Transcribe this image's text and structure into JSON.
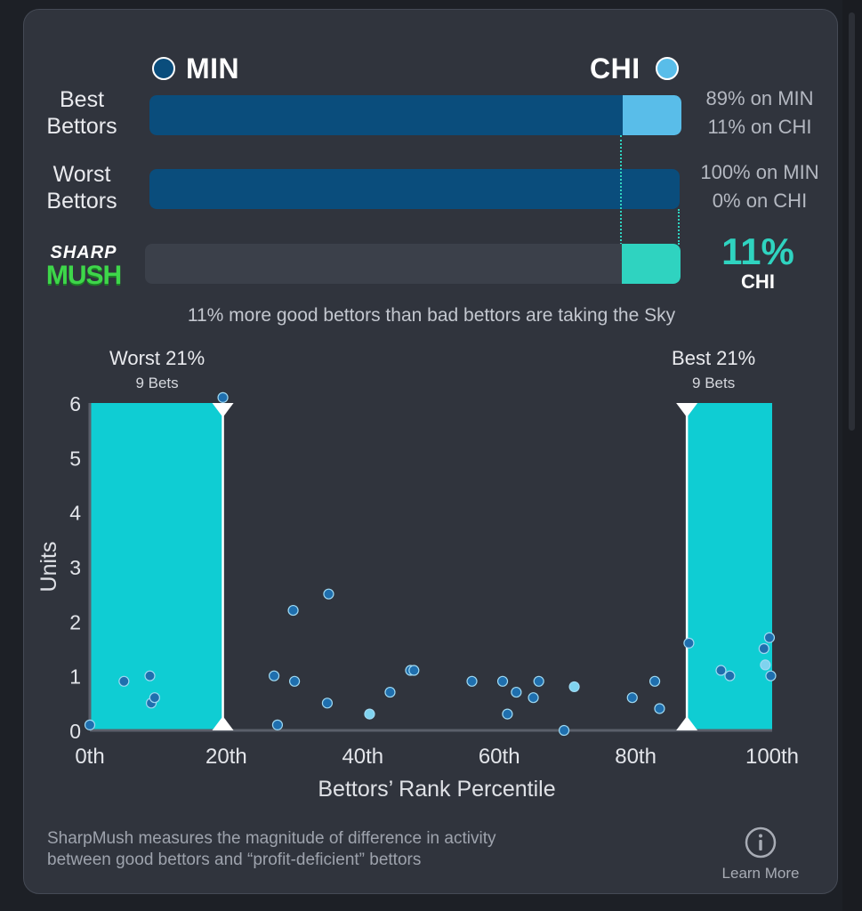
{
  "teams": {
    "left": {
      "label": "MIN",
      "color": "#0a4d7c"
    },
    "right": {
      "label": "CHI",
      "color": "#59bde9"
    }
  },
  "rows": [
    {
      "label_line1": "Best",
      "label_line2": "Bettors",
      "left_pct": 89,
      "right_pct": 11,
      "text_line1": "89% on MIN",
      "text_line2": "11% on CHI"
    },
    {
      "label_line1": "Worst",
      "label_line2": "Bettors",
      "left_pct": 100,
      "right_pct": 0,
      "text_line1": "100% on MIN",
      "text_line2": "0% on CHI"
    }
  ],
  "sharpmush": {
    "logo_line1": "SHARP",
    "logo_line2": "MUSH",
    "diff_pct": 11,
    "value": "11%",
    "team": "CHI",
    "color": "#2fd3c0"
  },
  "summary_text": "11% more good bettors than bad bettors are taking the Sky",
  "chart_data": {
    "type": "scatter",
    "xlabel": "Bettors’ Rank Percentile",
    "ylabel": "Units",
    "xlim": [
      0,
      100
    ],
    "ylim": [
      0,
      6
    ],
    "x_tick_labels": [
      "0th",
      "20th",
      "40th",
      "60th",
      "80th",
      "100th"
    ],
    "x_ticks": [
      0,
      20,
      40,
      60,
      80,
      100
    ],
    "y_ticks": [
      0,
      1,
      2,
      3,
      4,
      5,
      6
    ],
    "worst_zone": {
      "title": "Worst 21%",
      "subtitle": "9 Bets",
      "x_range": [
        0,
        19.5
      ]
    },
    "best_zone": {
      "title": "Best 21%",
      "subtitle": "9 Bets",
      "x_range": [
        87.5,
        100
      ]
    },
    "zone_color": "#0fcdd3",
    "points": [
      {
        "x": 0,
        "y": 0.1,
        "hl": false
      },
      {
        "x": 5,
        "y": 0.9,
        "hl": false
      },
      {
        "x": 8.8,
        "y": 1.0,
        "hl": false
      },
      {
        "x": 9,
        "y": 0.5,
        "hl": false
      },
      {
        "x": 9.5,
        "y": 0.6,
        "hl": false
      },
      {
        "x": 19.5,
        "y": 6.1,
        "hl": false
      },
      {
        "x": 27,
        "y": 1.0,
        "hl": false
      },
      {
        "x": 27.5,
        "y": 0.1,
        "hl": false
      },
      {
        "x": 29.8,
        "y": 2.2,
        "hl": false
      },
      {
        "x": 30,
        "y": 0.9,
        "hl": false
      },
      {
        "x": 34.8,
        "y": 0.5,
        "hl": false
      },
      {
        "x": 35,
        "y": 2.5,
        "hl": false
      },
      {
        "x": 41,
        "y": 0.3,
        "hl": true
      },
      {
        "x": 44,
        "y": 0.7,
        "hl": false
      },
      {
        "x": 47,
        "y": 1.1,
        "hl": false
      },
      {
        "x": 47.5,
        "y": 1.1,
        "hl": false
      },
      {
        "x": 56,
        "y": 0.9,
        "hl": false
      },
      {
        "x": 60.5,
        "y": 0.9,
        "hl": false
      },
      {
        "x": 61.2,
        "y": 0.3,
        "hl": false
      },
      {
        "x": 62.5,
        "y": 0.7,
        "hl": false
      },
      {
        "x": 65,
        "y": 0.6,
        "hl": false
      },
      {
        "x": 65.8,
        "y": 0.9,
        "hl": false
      },
      {
        "x": 69.5,
        "y": 0.0,
        "hl": false
      },
      {
        "x": 71,
        "y": 0.8,
        "hl": true
      },
      {
        "x": 79.5,
        "y": 0.6,
        "hl": false
      },
      {
        "x": 82.8,
        "y": 0.9,
        "hl": false
      },
      {
        "x": 83.5,
        "y": 0.4,
        "hl": false
      },
      {
        "x": 87.8,
        "y": 1.6,
        "hl": false
      },
      {
        "x": 92.5,
        "y": 1.1,
        "hl": false
      },
      {
        "x": 93.8,
        "y": 1.0,
        "hl": false
      },
      {
        "x": 98.8,
        "y": 1.5,
        "hl": false
      },
      {
        "x": 99,
        "y": 1.2,
        "hl": true
      },
      {
        "x": 99.6,
        "y": 1.7,
        "hl": false
      },
      {
        "x": 99.8,
        "y": 1.0,
        "hl": false
      }
    ]
  },
  "footer": {
    "text_line1": "SharpMush measures the magnitude of difference in activity",
    "text_line2": "between good bettors and “profit-deficient” bettors",
    "info_icon": "info-circle-icon",
    "learn_more": "Learn More"
  }
}
